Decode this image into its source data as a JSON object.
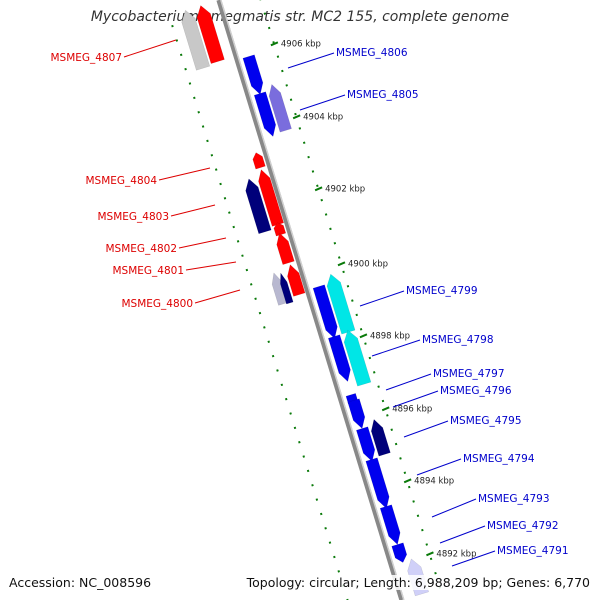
{
  "title": "Mycobacterium smegmatis str. MC2 155, complete genome",
  "footer": {
    "accession": "Accession: NC_008596",
    "summary": "Topology: circular; Length: 6,988,209 bp; Genes: 6,770"
  },
  "colors": {
    "red_gene": "#ff0000",
    "red_gene_light": "#ff5c5c",
    "blue_gene": "#0000ee",
    "dark_blue_gene": "#00007a",
    "light_purple_gene": "#7a6ddd",
    "cyan_gene": "#00e6e6",
    "gray_gene": "#c8c8c8",
    "backbone": "#888888",
    "tick": "#0a7a0a",
    "label_red": "#dd0000",
    "label_blue": "#0000cc"
  },
  "scale_marks": [
    "4906 kbp",
    "4904 kbp",
    "4902 kbp",
    "4900 kbp",
    "4898 kbp",
    "4896 kbp",
    "4894 kbp",
    "4892 kbp"
  ],
  "genes_left": [
    "MSMEG_4807",
    "MSMEG_4804",
    "MSMEG_4803",
    "MSMEG_4802",
    "MSMEG_4801",
    "MSMEG_4800"
  ],
  "genes_right": [
    "MSMEG_4806",
    "MSMEG_4805",
    "MSMEG_4799",
    "MSMEG_4798",
    "MSMEG_4797",
    "MSMEG_4796",
    "MSMEG_4795",
    "MSMEG_4794",
    "MSMEG_4793",
    "MSMEG_4792",
    "MSMEG_4791"
  ]
}
